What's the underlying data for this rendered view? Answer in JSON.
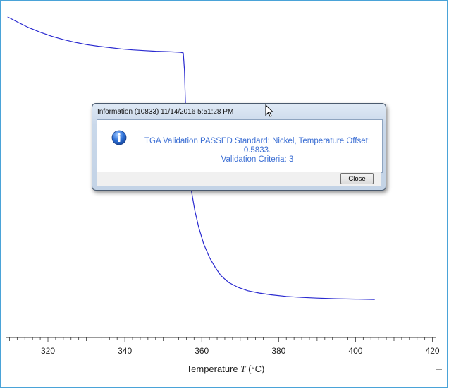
{
  "chart_data": {
    "type": "line",
    "xlabel_prefix": "Temperature",
    "xlabel_symbol": "T",
    "xlabel_unit": "(°C)",
    "xlim": [
      309,
      421
    ],
    "ylim": [
      0,
      1
    ],
    "x_ticks": [
      "320",
      "340",
      "360",
      "380",
      "400",
      "420"
    ],
    "x_tick_values": [
      320,
      340,
      360,
      380,
      400,
      420
    ],
    "series": [
      {
        "color": "#2a2ad0",
        "points": [
          [
            309.5,
            0.96
          ],
          [
            312,
            0.945
          ],
          [
            315,
            0.928
          ],
          [
            318,
            0.914
          ],
          [
            321,
            0.902
          ],
          [
            324,
            0.892
          ],
          [
            327,
            0.884
          ],
          [
            330,
            0.877
          ],
          [
            333,
            0.872
          ],
          [
            336,
            0.868
          ],
          [
            339,
            0.864
          ],
          [
            342,
            0.861
          ],
          [
            345,
            0.859
          ],
          [
            348,
            0.857
          ],
          [
            351,
            0.856
          ],
          [
            353,
            0.855
          ],
          [
            354.5,
            0.854
          ],
          [
            355.2,
            0.852
          ],
          [
            355.5,
            0.8
          ],
          [
            355.7,
            0.72
          ],
          [
            356.0,
            0.62
          ],
          [
            356.5,
            0.52
          ],
          [
            357.3,
            0.44
          ],
          [
            358.2,
            0.38
          ],
          [
            359.2,
            0.33
          ],
          [
            360.5,
            0.28
          ],
          [
            362,
            0.24
          ],
          [
            363.5,
            0.21
          ],
          [
            365,
            0.185
          ],
          [
            367,
            0.165
          ],
          [
            369.5,
            0.15
          ],
          [
            372,
            0.14
          ],
          [
            375,
            0.133
          ],
          [
            378,
            0.128
          ],
          [
            382,
            0.123
          ],
          [
            386,
            0.12
          ],
          [
            390,
            0.118
          ],
          [
            395,
            0.116
          ],
          [
            400,
            0.115
          ],
          [
            405,
            0.114
          ]
        ]
      }
    ]
  },
  "dialog": {
    "title": "Information (10833) 11/14/2016 5:51:28 PM",
    "message_line1": "TGA Validation PASSED Standard: Nickel, Temperature Offset: 0.5833.",
    "message_line2": "Validation Criteria: 3",
    "close_label": "Close",
    "icon": "info-icon"
  }
}
